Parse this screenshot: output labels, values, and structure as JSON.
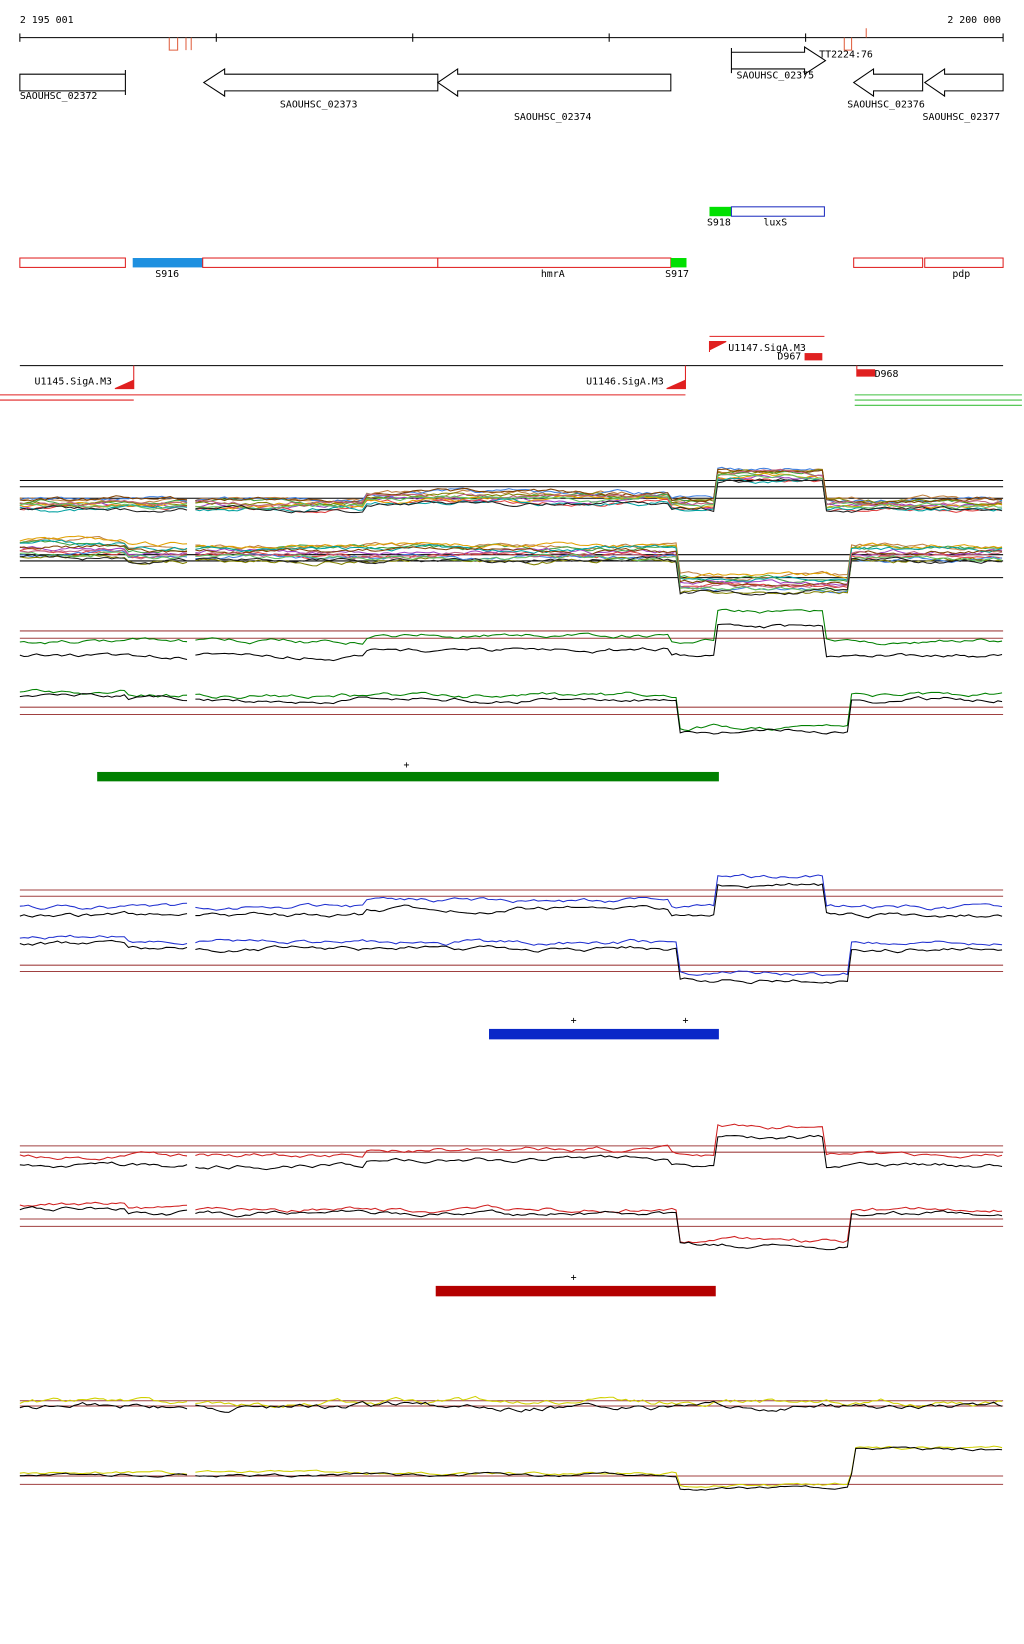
{
  "ruler": {
    "start": "2 195 001",
    "end": "2 200 000"
  },
  "genes": [
    "SAOUHSC_02372",
    "SAOUHSC_02373",
    "SAOUHSC_02374",
    "SAOUHSC_02375",
    "SAOUHSC_02376",
    "SAOUHSC_02377"
  ],
  "terminator": "TT2224:76",
  "features": [
    "S918",
    "luxS",
    "S916",
    "hmrA",
    "S917",
    "pdp"
  ],
  "promoters": [
    "U1147.SigA.M3",
    "D967",
    "U1145.SigA.M3",
    "U1146.SigA.M3",
    "D968"
  ],
  "tracks": [
    {
      "markers": [
        "+"
      ]
    },
    {
      "markers": [
        "+",
        "+"
      ]
    },
    {
      "markers": [
        "+"
      ]
    }
  ]
}
